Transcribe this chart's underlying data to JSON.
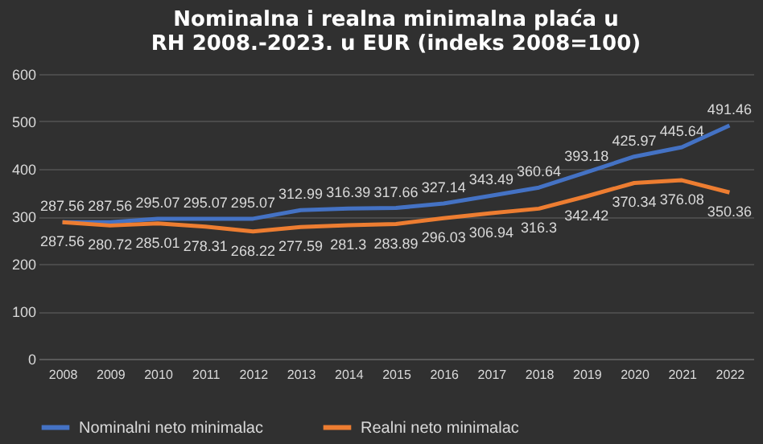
{
  "chart_data": {
    "type": "line",
    "title": "Nominalna i realna minimalna plaća u RH 2008.-2023. u EUR (indeks 2008=100)",
    "categories": [
      "2008",
      "2009",
      "2010",
      "2011",
      "2012",
      "2013",
      "2014",
      "2015",
      "2016",
      "2017",
      "2018",
      "2019",
      "2020",
      "2021",
      "2022"
    ],
    "series": [
      {
        "name": "Nominalni neto minimalac",
        "color": "#4472c4",
        "values": [
          287.56,
          287.56,
          295.07,
          295.07,
          295.07,
          312.99,
          316.39,
          317.66,
          327.14,
          343.49,
          360.64,
          393.18,
          425.97,
          445.64,
          491.46
        ]
      },
      {
        "name": "Realni neto minimalac",
        "color": "#ed7d31",
        "values": [
          287.56,
          280.72,
          285.01,
          278.31,
          268.22,
          277.59,
          281.3,
          283.89,
          296.03,
          306.94,
          316.3,
          342.42,
          370.34,
          376.08,
          350.36
        ]
      }
    ],
    "ylim": [
      0,
      600
    ],
    "yticks": [
      0,
      100,
      200,
      300,
      400,
      500,
      600
    ],
    "grid": "y",
    "legend": "bottom",
    "data_labels": true,
    "marker": "none",
    "line_style": "solid"
  }
}
